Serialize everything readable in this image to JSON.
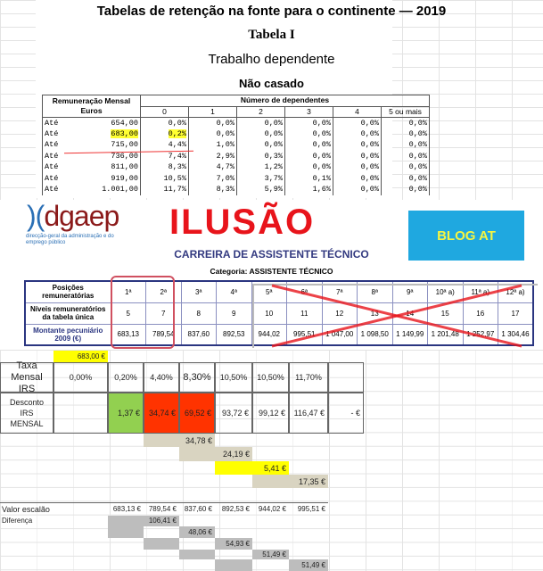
{
  "header": {
    "title": "Tabelas de retenção na fonte para o continente — 2019",
    "table": "Tabela I",
    "subtitle": "Trabalho dependente",
    "status": "Não casado"
  },
  "irs_table": {
    "col_remun": "Remuneração Mensal Euros",
    "col_dep": "Número de dependentes",
    "dep_cols": [
      "0",
      "1",
      "2",
      "3",
      "4",
      "5 ou mais"
    ],
    "rows": [
      {
        "label": "Até",
        "value": "654,00",
        "rates": [
          "0,0%",
          "0,0%",
          "0,0%",
          "0,0%",
          "0,0%",
          "0,0%"
        ]
      },
      {
        "label": "Até",
        "value": "683,00",
        "rates": [
          "0,2%",
          "0,0%",
          "0,0%",
          "0,0%",
          "0,0%",
          "0,0%"
        ]
      },
      {
        "label": "Até",
        "value": "715,00",
        "rates": [
          "4,4%",
          "1,0%",
          "0,0%",
          "0,0%",
          "0,0%",
          "0,0%"
        ]
      },
      {
        "label": "Até",
        "value": "736,00",
        "rates": [
          "7,4%",
          "2,9%",
          "0,3%",
          "0,0%",
          "0,0%",
          "0,0%"
        ]
      },
      {
        "label": "Até",
        "value": "811,00",
        "rates": [
          "8,3%",
          "4,7%",
          "1,2%",
          "0,0%",
          "0,0%",
          "0,0%"
        ]
      },
      {
        "label": "Até",
        "value": "919,00",
        "rates": [
          "10,5%",
          "7,0%",
          "3,7%",
          "0,1%",
          "0,0%",
          "0,0%"
        ]
      },
      {
        "label": "Até",
        "value": "1.001,00",
        "rates": [
          "11,7%",
          "8,3%",
          "5,9%",
          "1,6%",
          "0,0%",
          "0,0%"
        ]
      }
    ]
  },
  "dgaep": {
    "logo": "dgaep",
    "logo_sub": "direcção-geral da administração e do emprego público",
    "blog": "BLOG AT",
    "title": "CARREIRA DE ASSISTENTE TÉCNICO",
    "categoria": "Categoria: ASSISTENTE TÉCNICO",
    "stamp": "ILUSÃO",
    "rows": [
      {
        "label": "Posições remuneratórias",
        "cells": [
          "1ª",
          "2ª",
          "3ª",
          "4ª",
          "5ª",
          "6ª",
          "7ª",
          "8ª",
          "9ª",
          "10ª a)",
          "11ª a)",
          "12ª a)"
        ]
      },
      {
        "label": "Níveis remuneratórios da tabela única",
        "cells": [
          "5",
          "7",
          "8",
          "9",
          "10",
          "11",
          "12",
          "13",
          "14",
          "15",
          "16",
          "17"
        ]
      },
      {
        "label": "Montante pecuniário 2009 (€)",
        "cells": [
          "683,13",
          "789,54",
          "837,60",
          "892,53",
          "944,02",
          "995,51",
          "1 047,00",
          "1 098,50",
          "1 149,99",
          "1 201,48",
          "1 252,97",
          "1 304,46"
        ]
      }
    ]
  },
  "sheet": {
    "ref": "683,00 €",
    "taxa_label": "Taxa Mensal IRS",
    "taxas": [
      "0,00%",
      "0,20%",
      "4,40%",
      "8,30%",
      "10,50%",
      "10,50%",
      "11,70%"
    ],
    "desc_label": "Desconto IRS MENSAL",
    "descontos": [
      "1,37 €",
      "34,74 €",
      "69,52 €",
      "93,72 €",
      "99,12 €",
      "116,47 €",
      "-   €"
    ],
    "diffs": [
      "34,78 €",
      "24,19 €",
      "5,41 €",
      "17,35 €"
    ],
    "valor_label": "Valor escalão",
    "valores": [
      "683,13 €",
      "789,54 €",
      "837,60 €",
      "892,53 €",
      "944,02 €",
      "995,51 €"
    ],
    "dif_label": "Diferença",
    "difs2": [
      "106,41 €",
      "48,06 €",
      "54,93 €",
      "51,49 €",
      "51,49 €"
    ]
  },
  "colors": {
    "green": "#92d050",
    "red": "#ff3300",
    "yellow": "#ffff00",
    "blog_bg": "#1fa8e0",
    "stamp": "#e8141b"
  }
}
